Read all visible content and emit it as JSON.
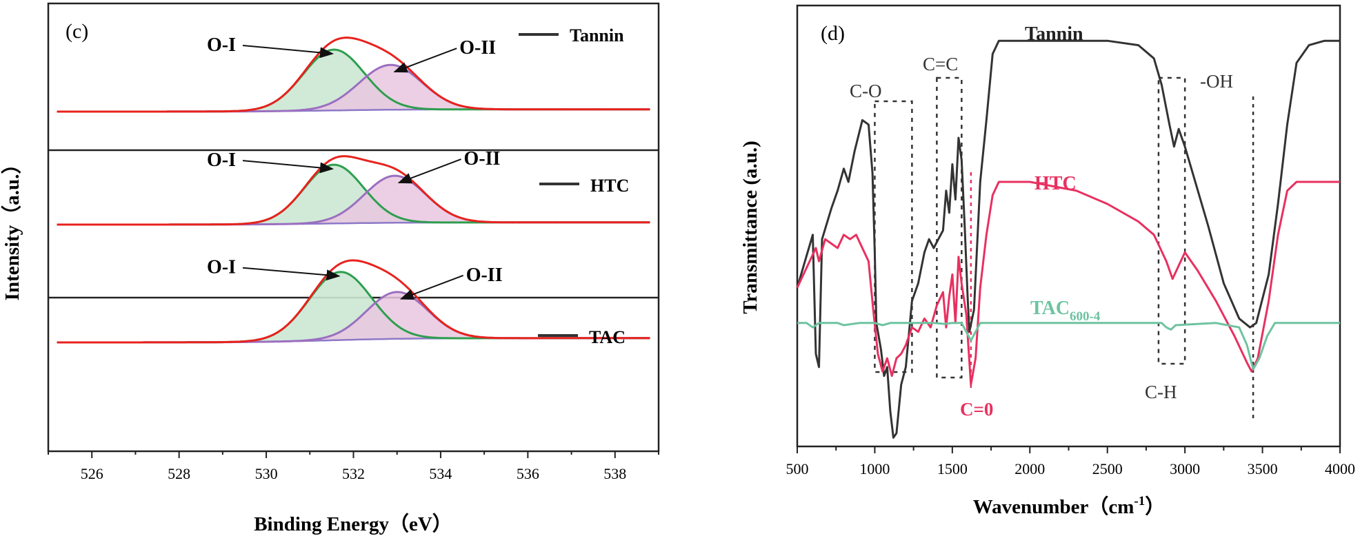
{
  "chart_data": [
    {
      "type": "line",
      "panel_label": "(c)",
      "xlabel": "Binding Energy（eV）",
      "ylabel": "Intensity（a.u.）",
      "xlim": [
        525,
        539
      ],
      "xticks": [
        526,
        528,
        530,
        532,
        534,
        536,
        538
      ],
      "tick_labels": [
        "526",
        "528",
        "530",
        "532",
        "534",
        "536",
        "538"
      ],
      "component_labels": {
        "o1": "O-I",
        "o2": "O-II"
      },
      "subplots": [
        {
          "name": "Tannin",
          "o1": {
            "center": 531.55,
            "amplitude": 0.8,
            "sigma": 0.7
          },
          "o2": {
            "center": 532.85,
            "amplitude": 0.59,
            "sigma": 0.72
          },
          "baseline_step": 0.03
        },
        {
          "name": "HTC",
          "o1": {
            "center": 531.55,
            "amplitude": 0.8,
            "sigma": 0.68
          },
          "o2": {
            "center": 532.95,
            "amplitude": 0.64,
            "sigma": 0.7
          },
          "baseline_step": 0.03
        },
        {
          "name": "TAC",
          "o1": {
            "center": 531.7,
            "amplitude": 0.8,
            "sigma": 0.72
          },
          "o2": {
            "center": 533.0,
            "amplitude": 0.55,
            "sigma": 0.7
          },
          "baseline_step": 0.05
        }
      ],
      "colors": {
        "envelope": "#e8221d",
        "o1_line": "#2e9e4e",
        "o1_fill": "#cbe8d3",
        "o2_line": "#9b6fc0",
        "o2_fill": "#e9c7e1",
        "baseline": "#8d78c8",
        "raw": "#333333"
      }
    },
    {
      "type": "line",
      "panel_label": "(d)",
      "xlabel": "Wavenumber（cm",
      "xlabel_sup": "-1",
      "xlabel_end": "）",
      "ylabel": "Transmittance (a.u.)",
      "xlim": [
        500,
        4000
      ],
      "xticks": [
        500,
        1000,
        1500,
        2000,
        2500,
        3000,
        3500,
        4000
      ],
      "tick_labels": [
        "500",
        "1000",
        "1500",
        "2000",
        "2500",
        "3000",
        "3500",
        "4000"
      ],
      "series": [
        {
          "name": "Tannin",
          "color": "#333333",
          "points": [
            [
              500,
              0.64
            ],
            [
              550,
              0.58
            ],
            [
              600,
              0.52
            ],
            [
              620,
              0.79
            ],
            [
              640,
              0.82
            ],
            [
              660,
              0.53
            ],
            [
              720,
              0.46
            ],
            [
              760,
              0.42
            ],
            [
              800,
              0.37
            ],
            [
              830,
              0.4
            ],
            [
              870,
              0.33
            ],
            [
              920,
              0.26
            ],
            [
              960,
              0.27
            ],
            [
              985,
              0.38
            ],
            [
              1000,
              0.56
            ],
            [
              1010,
              0.72
            ],
            [
              1040,
              0.78
            ],
            [
              1060,
              0.84
            ],
            [
              1080,
              0.82
            ],
            [
              1100,
              0.92
            ],
            [
              1120,
              0.98
            ],
            [
              1140,
              0.97
            ],
            [
              1170,
              0.86
            ],
            [
              1200,
              0.82
            ],
            [
              1240,
              0.67
            ],
            [
              1280,
              0.63
            ],
            [
              1320,
              0.56
            ],
            [
              1350,
              0.53
            ],
            [
              1380,
              0.55
            ],
            [
              1410,
              0.53
            ],
            [
              1440,
              0.51
            ],
            [
              1460,
              0.42
            ],
            [
              1480,
              0.47
            ],
            [
              1500,
              0.36
            ],
            [
              1520,
              0.44
            ],
            [
              1540,
              0.3
            ],
            [
              1560,
              0.35
            ],
            [
              1580,
              0.5
            ],
            [
              1600,
              0.67
            ],
            [
              1610,
              0.74
            ],
            [
              1640,
              0.69
            ],
            [
              1680,
              0.4
            ],
            [
              1720,
              0.26
            ],
            [
              1760,
              0.11
            ],
            [
              1800,
              0.08
            ],
            [
              1900,
              0.08
            ],
            [
              2500,
              0.08
            ],
            [
              2700,
              0.09
            ],
            [
              2800,
              0.12
            ],
            [
              2850,
              0.18
            ],
            [
              2900,
              0.27
            ],
            [
              2930,
              0.32
            ],
            [
              2960,
              0.28
            ],
            [
              3000,
              0.32
            ],
            [
              3050,
              0.38
            ],
            [
              3150,
              0.5
            ],
            [
              3250,
              0.63
            ],
            [
              3350,
              0.71
            ],
            [
              3420,
              0.73
            ],
            [
              3460,
              0.72
            ],
            [
              3540,
              0.61
            ],
            [
              3600,
              0.45
            ],
            [
              3660,
              0.27
            ],
            [
              3720,
              0.13
            ],
            [
              3800,
              0.09
            ],
            [
              3900,
              0.08
            ],
            [
              4000,
              0.08
            ]
          ]
        },
        {
          "name": "HTC",
          "color": "#e8305f",
          "points": [
            [
              500,
              0.64
            ],
            [
              540,
              0.61
            ],
            [
              580,
              0.58
            ],
            [
              620,
              0.55
            ],
            [
              640,
              0.58
            ],
            [
              680,
              0.53
            ],
            [
              720,
              0.54
            ],
            [
              760,
              0.55
            ],
            [
              800,
              0.52
            ],
            [
              840,
              0.53
            ],
            [
              880,
              0.52
            ],
            [
              920,
              0.55
            ],
            [
              960,
              0.58
            ],
            [
              990,
              0.69
            ],
            [
              1020,
              0.79
            ],
            [
              1050,
              0.83
            ],
            [
              1080,
              0.8
            ],
            [
              1110,
              0.84
            ],
            [
              1140,
              0.8
            ],
            [
              1170,
              0.79
            ],
            [
              1200,
              0.77
            ],
            [
              1240,
              0.73
            ],
            [
              1280,
              0.74
            ],
            [
              1320,
              0.71
            ],
            [
              1360,
              0.73
            ],
            [
              1400,
              0.68
            ],
            [
              1440,
              0.65
            ],
            [
              1460,
              0.73
            ],
            [
              1480,
              0.66
            ],
            [
              1500,
              0.61
            ],
            [
              1520,
              0.72
            ],
            [
              1540,
              0.57
            ],
            [
              1560,
              0.63
            ],
            [
              1590,
              0.7
            ],
            [
              1620,
              0.86
            ],
            [
              1650,
              0.8
            ],
            [
              1680,
              0.64
            ],
            [
              1720,
              0.52
            ],
            [
              1760,
              0.43
            ],
            [
              1800,
              0.4
            ],
            [
              2000,
              0.4
            ],
            [
              2300,
              0.42
            ],
            [
              2500,
              0.45
            ],
            [
              2700,
              0.49
            ],
            [
              2800,
              0.52
            ],
            [
              2880,
              0.58
            ],
            [
              2920,
              0.62
            ],
            [
              2960,
              0.59
            ],
            [
              3000,
              0.56
            ],
            [
              3080,
              0.6
            ],
            [
              3200,
              0.67
            ],
            [
              3320,
              0.75
            ],
            [
              3400,
              0.81
            ],
            [
              3430,
              0.83
            ],
            [
              3470,
              0.8
            ],
            [
              3540,
              0.67
            ],
            [
              3600,
              0.52
            ],
            [
              3660,
              0.42
            ],
            [
              3720,
              0.4
            ],
            [
              3850,
              0.4
            ],
            [
              4000,
              0.4
            ]
          ]
        },
        {
          "name": "TAC600-4",
          "name_main": "TAC",
          "name_sub": "600-4",
          "color": "#6dc3a0",
          "points": [
            [
              500,
              0.72
            ],
            [
              560,
              0.72
            ],
            [
              600,
              0.73
            ],
            [
              640,
              0.72
            ],
            [
              700,
              0.72
            ],
            [
              760,
              0.72
            ],
            [
              800,
              0.725
            ],
            [
              900,
              0.72
            ],
            [
              1000,
              0.72
            ],
            [
              1050,
              0.725
            ],
            [
              1100,
              0.72
            ],
            [
              1200,
              0.72
            ],
            [
              1300,
              0.72
            ],
            [
              1380,
              0.72
            ],
            [
              1450,
              0.722
            ],
            [
              1500,
              0.72
            ],
            [
              1560,
              0.72
            ],
            [
              1590,
              0.74
            ],
            [
              1620,
              0.76
            ],
            [
              1650,
              0.74
            ],
            [
              1680,
              0.72
            ],
            [
              1800,
              0.72
            ],
            [
              2500,
              0.72
            ],
            [
              2850,
              0.72
            ],
            [
              2880,
              0.73
            ],
            [
              2910,
              0.735
            ],
            [
              2940,
              0.725
            ],
            [
              3200,
              0.72
            ],
            [
              3350,
              0.73
            ],
            [
              3400,
              0.77
            ],
            [
              3440,
              0.825
            ],
            [
              3480,
              0.8
            ],
            [
              3530,
              0.75
            ],
            [
              3580,
              0.72
            ],
            [
              3700,
              0.72
            ],
            [
              4000,
              0.72
            ]
          ]
        }
      ],
      "annotations": [
        {
          "text": "C-O",
          "x": 1150
        },
        {
          "text": "C=C",
          "x": 1480
        },
        {
          "text": "-OH",
          "x": 3450
        },
        {
          "text": "C=0",
          "x": 1620,
          "color": "#e8305f"
        },
        {
          "text": "C-H",
          "x": 2920
        }
      ],
      "regions": [
        {
          "name": "C-O",
          "x0": 1000,
          "x1": 1240
        },
        {
          "name": "C=C",
          "x0": 1400,
          "x1": 1560
        },
        {
          "name": "C-H",
          "x0": 2830,
          "x1": 3000
        }
      ],
      "vlines": [
        {
          "name": "C=0",
          "x": 1620,
          "color": "#e8305f"
        },
        {
          "name": "-OH",
          "x": 3440,
          "color": "#333333"
        }
      ]
    }
  ]
}
